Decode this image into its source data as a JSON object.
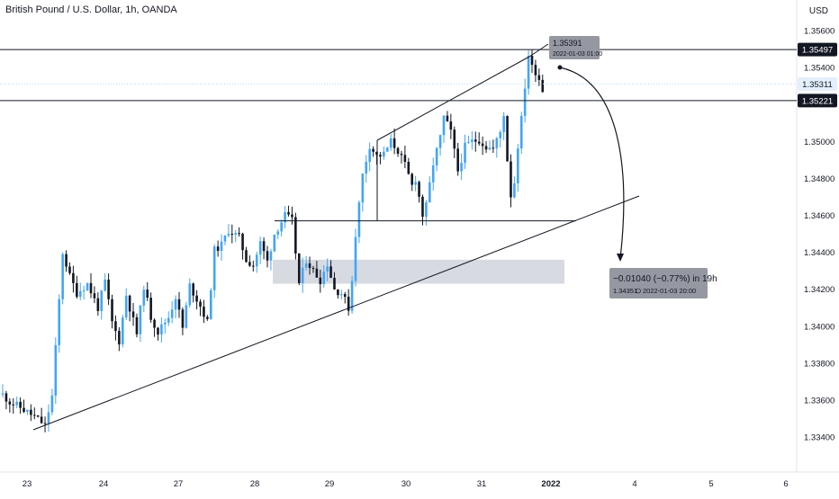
{
  "header": {
    "title": "British Pound / U.S. Dollar, 1h, OANDA",
    "currency": "USD"
  },
  "chart_data": {
    "type": "candlestick",
    "title": "British Pound / U.S. Dollar, 1h, OANDA",
    "ylim": [
      1.3325,
      1.357
    ],
    "y_ticks": [
      "1.35600",
      "1.35400",
      "1.35000",
      "1.34800",
      "1.34600",
      "1.34400",
      "1.34200",
      "1.34000",
      "1.33800",
      "1.33600",
      "1.33400"
    ],
    "x_ticks": [
      "23",
      "24",
      "27",
      "28",
      "29",
      "30",
      "31",
      "2022",
      "4",
      "5",
      "6"
    ],
    "horizontal_lines": [
      {
        "value": 1.35497,
        "label": "1.35497",
        "style": "boxed"
      },
      {
        "value": 1.35221,
        "label": "1.35221",
        "style": "boxed"
      },
      {
        "value": 1.35311,
        "label": "1.35311",
        "style": "highlight"
      }
    ],
    "support_line_value": 1.3457,
    "zone": {
      "from": 1.3423,
      "to": 1.3436
    },
    "colors": {
      "up": "#42a5f5",
      "down": "#131722",
      "line": "#131722",
      "zone": "#d1d4dc",
      "label_bg": "#9598a1",
      "price_tag": "#e3effd"
    },
    "tooltip_high": {
      "price": "1.35391",
      "time": "2022-01-03 01:00"
    },
    "projection": {
      "change": "−0.01040 (−0.77%) in 19h",
      "target": "1.34351",
      "time": "2022-01-03  20:00"
    }
  }
}
